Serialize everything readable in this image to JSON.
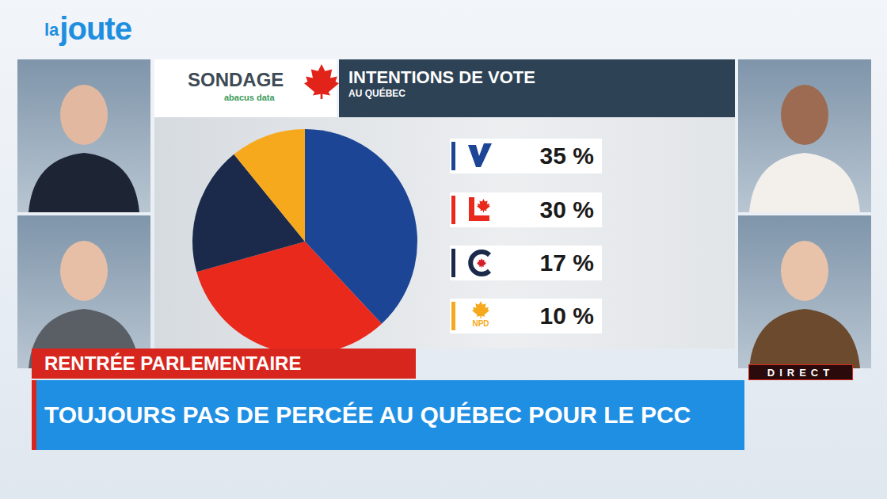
{
  "chart_data": {
    "type": "pie",
    "title": "INTENTIONS DE VOTE",
    "subtitle": "AU QUÉBEC",
    "categories": [
      null,
      null,
      null,
      "NPD"
    ],
    "values": [
      35,
      30,
      17,
      10
    ],
    "value_labels": [
      "35 %",
      "30 %",
      "17 %",
      "10 %"
    ],
    "colors": [
      "#1c4596",
      "#e8291c",
      "#1b2a4a",
      "#f6a91c"
    ]
  },
  "logo": {
    "small": "la",
    "big": "joute"
  },
  "header": {
    "label": "SONDAGE",
    "source": "abacus data"
  },
  "banner": {
    "kicker": "RENTRÉE PARLEMENTAIRE",
    "headline": "TOUJOURS PAS DE PERCÉE AU QUÉBEC POUR LE PCC"
  },
  "live": "DIRECT"
}
